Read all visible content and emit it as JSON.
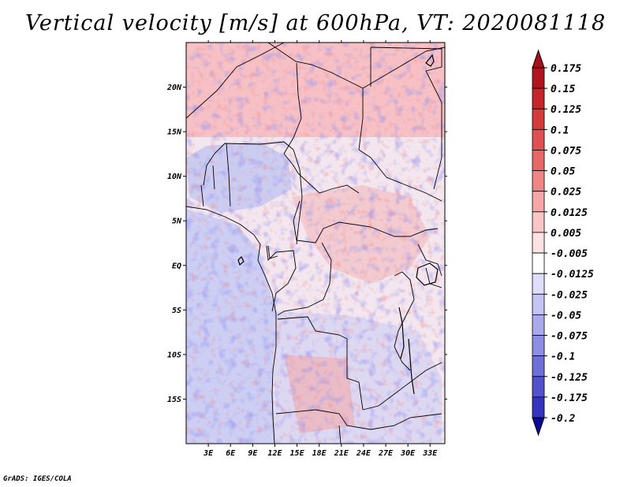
{
  "title": "Vertical velocity [m/s] at 600hPa, VT: 2020081118",
  "credit": "GrADS: IGES/COLA",
  "map": {
    "lon_range": [
      0,
      35
    ],
    "lat_range": [
      -20,
      25
    ],
    "x_ticks": [
      {
        "lon": 3,
        "label": "3E"
      },
      {
        "lon": 6,
        "label": "6E"
      },
      {
        "lon": 9,
        "label": "9E"
      },
      {
        "lon": 12,
        "label": "12E"
      },
      {
        "lon": 15,
        "label": "15E"
      },
      {
        "lon": 18,
        "label": "18E"
      },
      {
        "lon": 21,
        "label": "21E"
      },
      {
        "lon": 24,
        "label": "24E"
      },
      {
        "lon": 27,
        "label": "27E"
      },
      {
        "lon": 30,
        "label": "30E"
      },
      {
        "lon": 33,
        "label": "33E"
      }
    ],
    "y_ticks": [
      {
        "lat": 20,
        "label": "20N"
      },
      {
        "lat": 15,
        "label": "15N"
      },
      {
        "lat": 10,
        "label": "10N"
      },
      {
        "lat": 5,
        "label": "5N"
      },
      {
        "lat": 0,
        "label": "EQ"
      },
      {
        "lat": -5,
        "label": "5S"
      },
      {
        "lat": -10,
        "label": "10S"
      },
      {
        "lat": -15,
        "label": "15S"
      }
    ]
  },
  "colorbar": {
    "levels": [
      {
        "label": "0.175",
        "color": "#b0141e"
      },
      {
        "label": "0.15",
        "color": "#c4262a"
      },
      {
        "label": "0.125",
        "color": "#d43b3b"
      },
      {
        "label": "0.1",
        "color": "#e05050"
      },
      {
        "label": "0.075",
        "color": "#e86767"
      },
      {
        "label": "0.05",
        "color": "#ef8585"
      },
      {
        "label": "0.025",
        "color": "#f5a7a7"
      },
      {
        "label": "0.0125",
        "color": "#f9c6c6"
      },
      {
        "label": "0.005",
        "color": "#fce2e2"
      },
      {
        "label": "-0.005",
        "color": "#ffffff"
      },
      {
        "label": "-0.0125",
        "color": "#dedefa"
      },
      {
        "label": "-0.025",
        "color": "#c4c4f3"
      },
      {
        "label": "-0.05",
        "color": "#a9a9ec"
      },
      {
        "label": "-0.075",
        "color": "#8d8de3"
      },
      {
        "label": "-0.1",
        "color": "#6f6fd8"
      },
      {
        "label": "-0.125",
        "color": "#5252cb"
      },
      {
        "label": "-0.175",
        "color": "#3434bc"
      },
      {
        "label": "-0.2",
        "color": "#1c1ca8"
      }
    ],
    "low_end_color": "#0a0a96",
    "high_end_color": "#a8101a"
  }
}
